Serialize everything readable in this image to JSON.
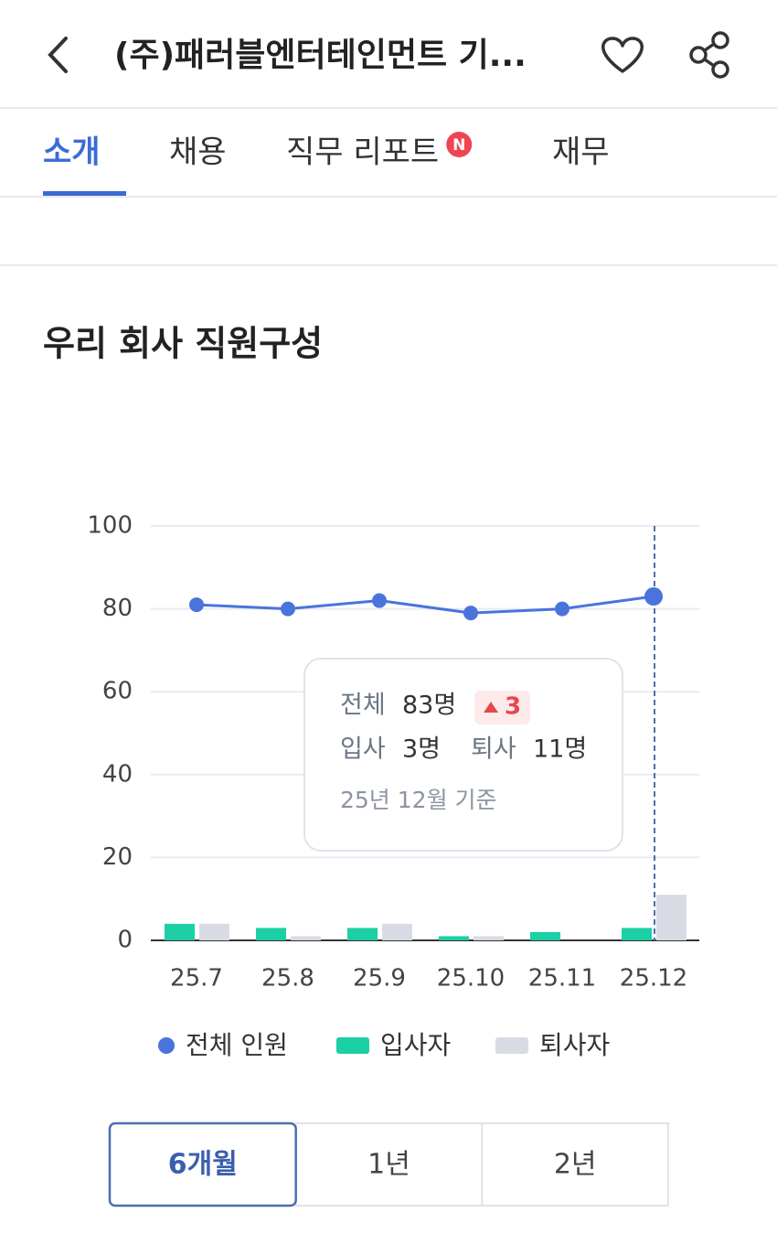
{
  "header": {
    "title": "(주)패러블엔터테인먼트 기..."
  },
  "tabs": [
    {
      "label": "소개"
    },
    {
      "label": "채용"
    },
    {
      "label": "직무 리포트",
      "badge": "N"
    },
    {
      "label": "재무"
    }
  ],
  "active_tab": 0,
  "section": {
    "title": "우리 회사 직원구성"
  },
  "chart_data": {
    "type": "bar",
    "categories": [
      "25.7",
      "25.8",
      "25.9",
      "25.10",
      "25.11",
      "25.12"
    ],
    "series": [
      {
        "name": "전체 인원",
        "type": "line",
        "color": "#4a74dc",
        "values": [
          81,
          80,
          82,
          79,
          80,
          83
        ]
      },
      {
        "name": "입사자",
        "type": "bar",
        "color": "#1ccfa4",
        "values": [
          4,
          3,
          3,
          1,
          2,
          3
        ]
      },
      {
        "name": "퇴사자",
        "type": "bar",
        "color": "#d8dbe3",
        "values": [
          4,
          1,
          4,
          1,
          0,
          11
        ]
      }
    ],
    "ylim": [
      0,
      100
    ],
    "yticks": [
      0,
      20,
      40,
      60,
      80,
      100
    ],
    "grid": true
  },
  "tooltip": {
    "total_label": "전체",
    "total": "83명",
    "change": "3",
    "hire_label": "입사",
    "hire": "3명",
    "exit_label": "퇴사",
    "exit": "11명",
    "note": "25년 12월 기준"
  },
  "periods": [
    "6개월",
    "1년",
    "2년"
  ],
  "selected_period": 0
}
